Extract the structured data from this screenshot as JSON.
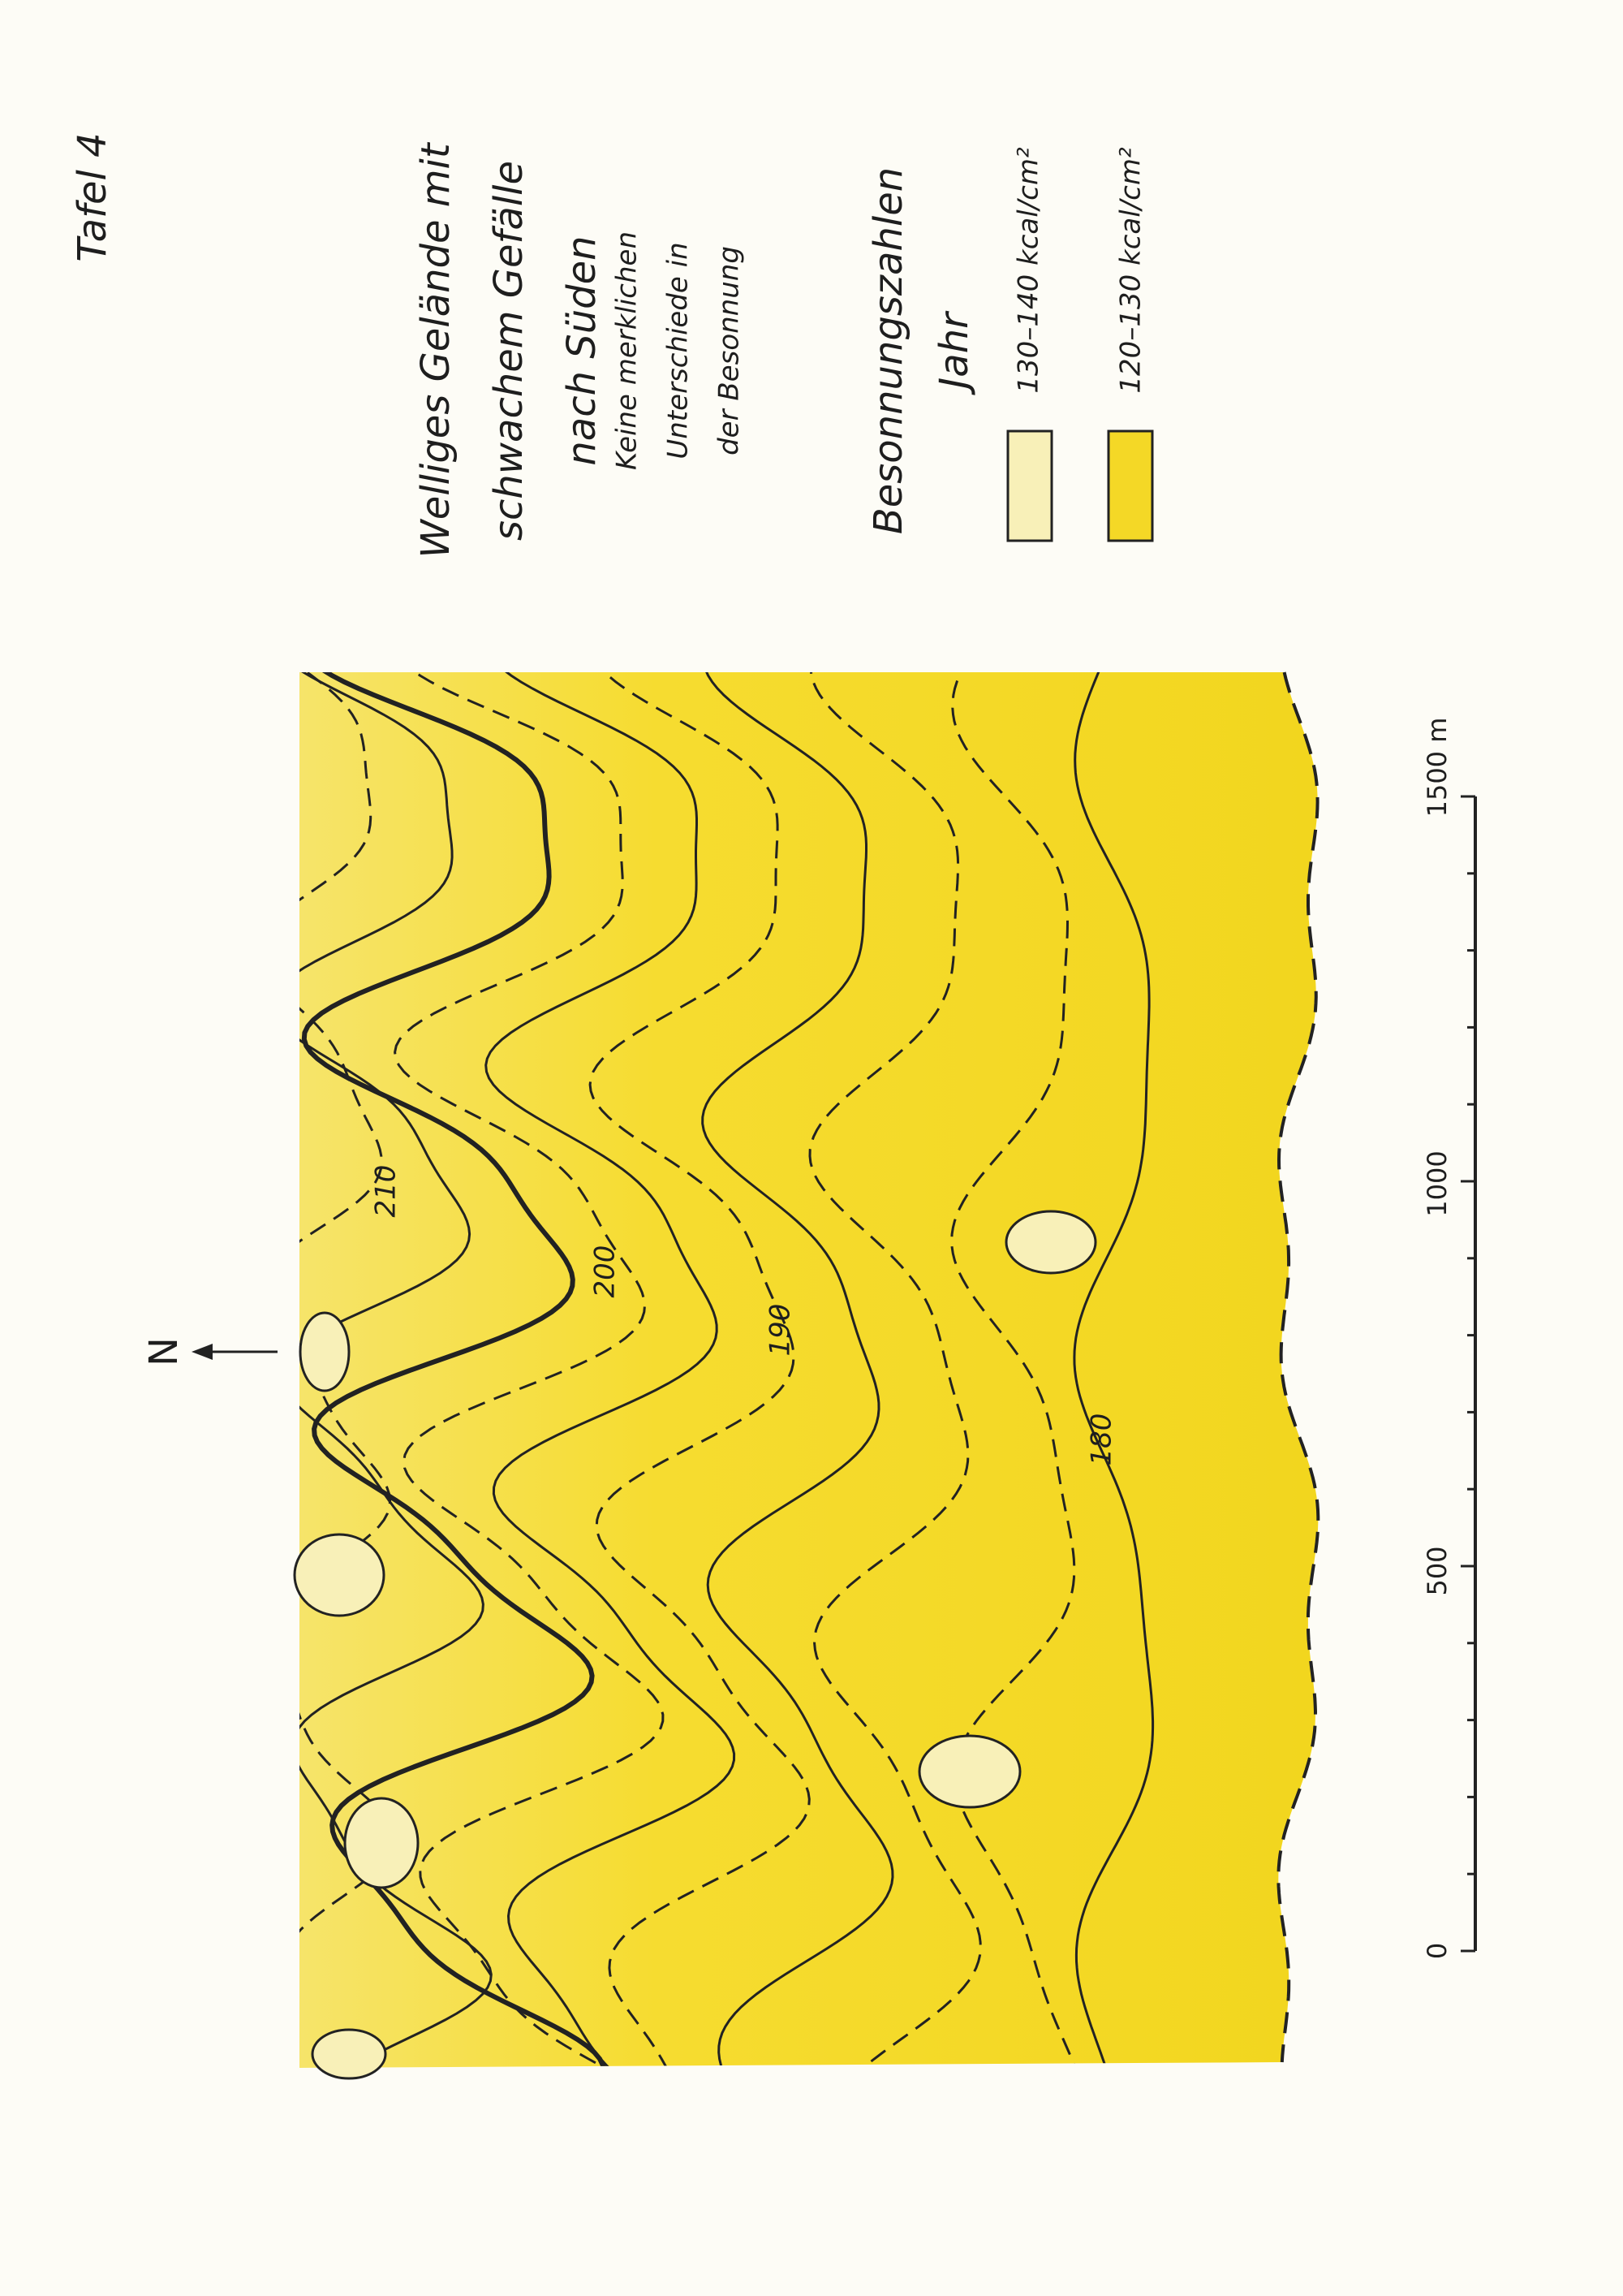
{
  "header": {
    "plate": "Tafel 4"
  },
  "legend": {
    "title": [
      "Welliges Gelände mit",
      "schwachem Gefälle",
      "nach Süden"
    ],
    "note": [
      "Keine merklichen",
      "Unterschiede in",
      "der Besonnung"
    ],
    "heading": [
      "Besonnungszahlen",
      "Jahr"
    ],
    "items": [
      "130–140 kcal/cm²",
      "120–130 kcal/cm²"
    ]
  },
  "map": {
    "north": "N",
    "contour_labels": [
      "210",
      "200",
      "190",
      "180"
    ]
  },
  "scale": {
    "labels": [
      "0",
      "500",
      "1000",
      "1500 m"
    ]
  }
}
